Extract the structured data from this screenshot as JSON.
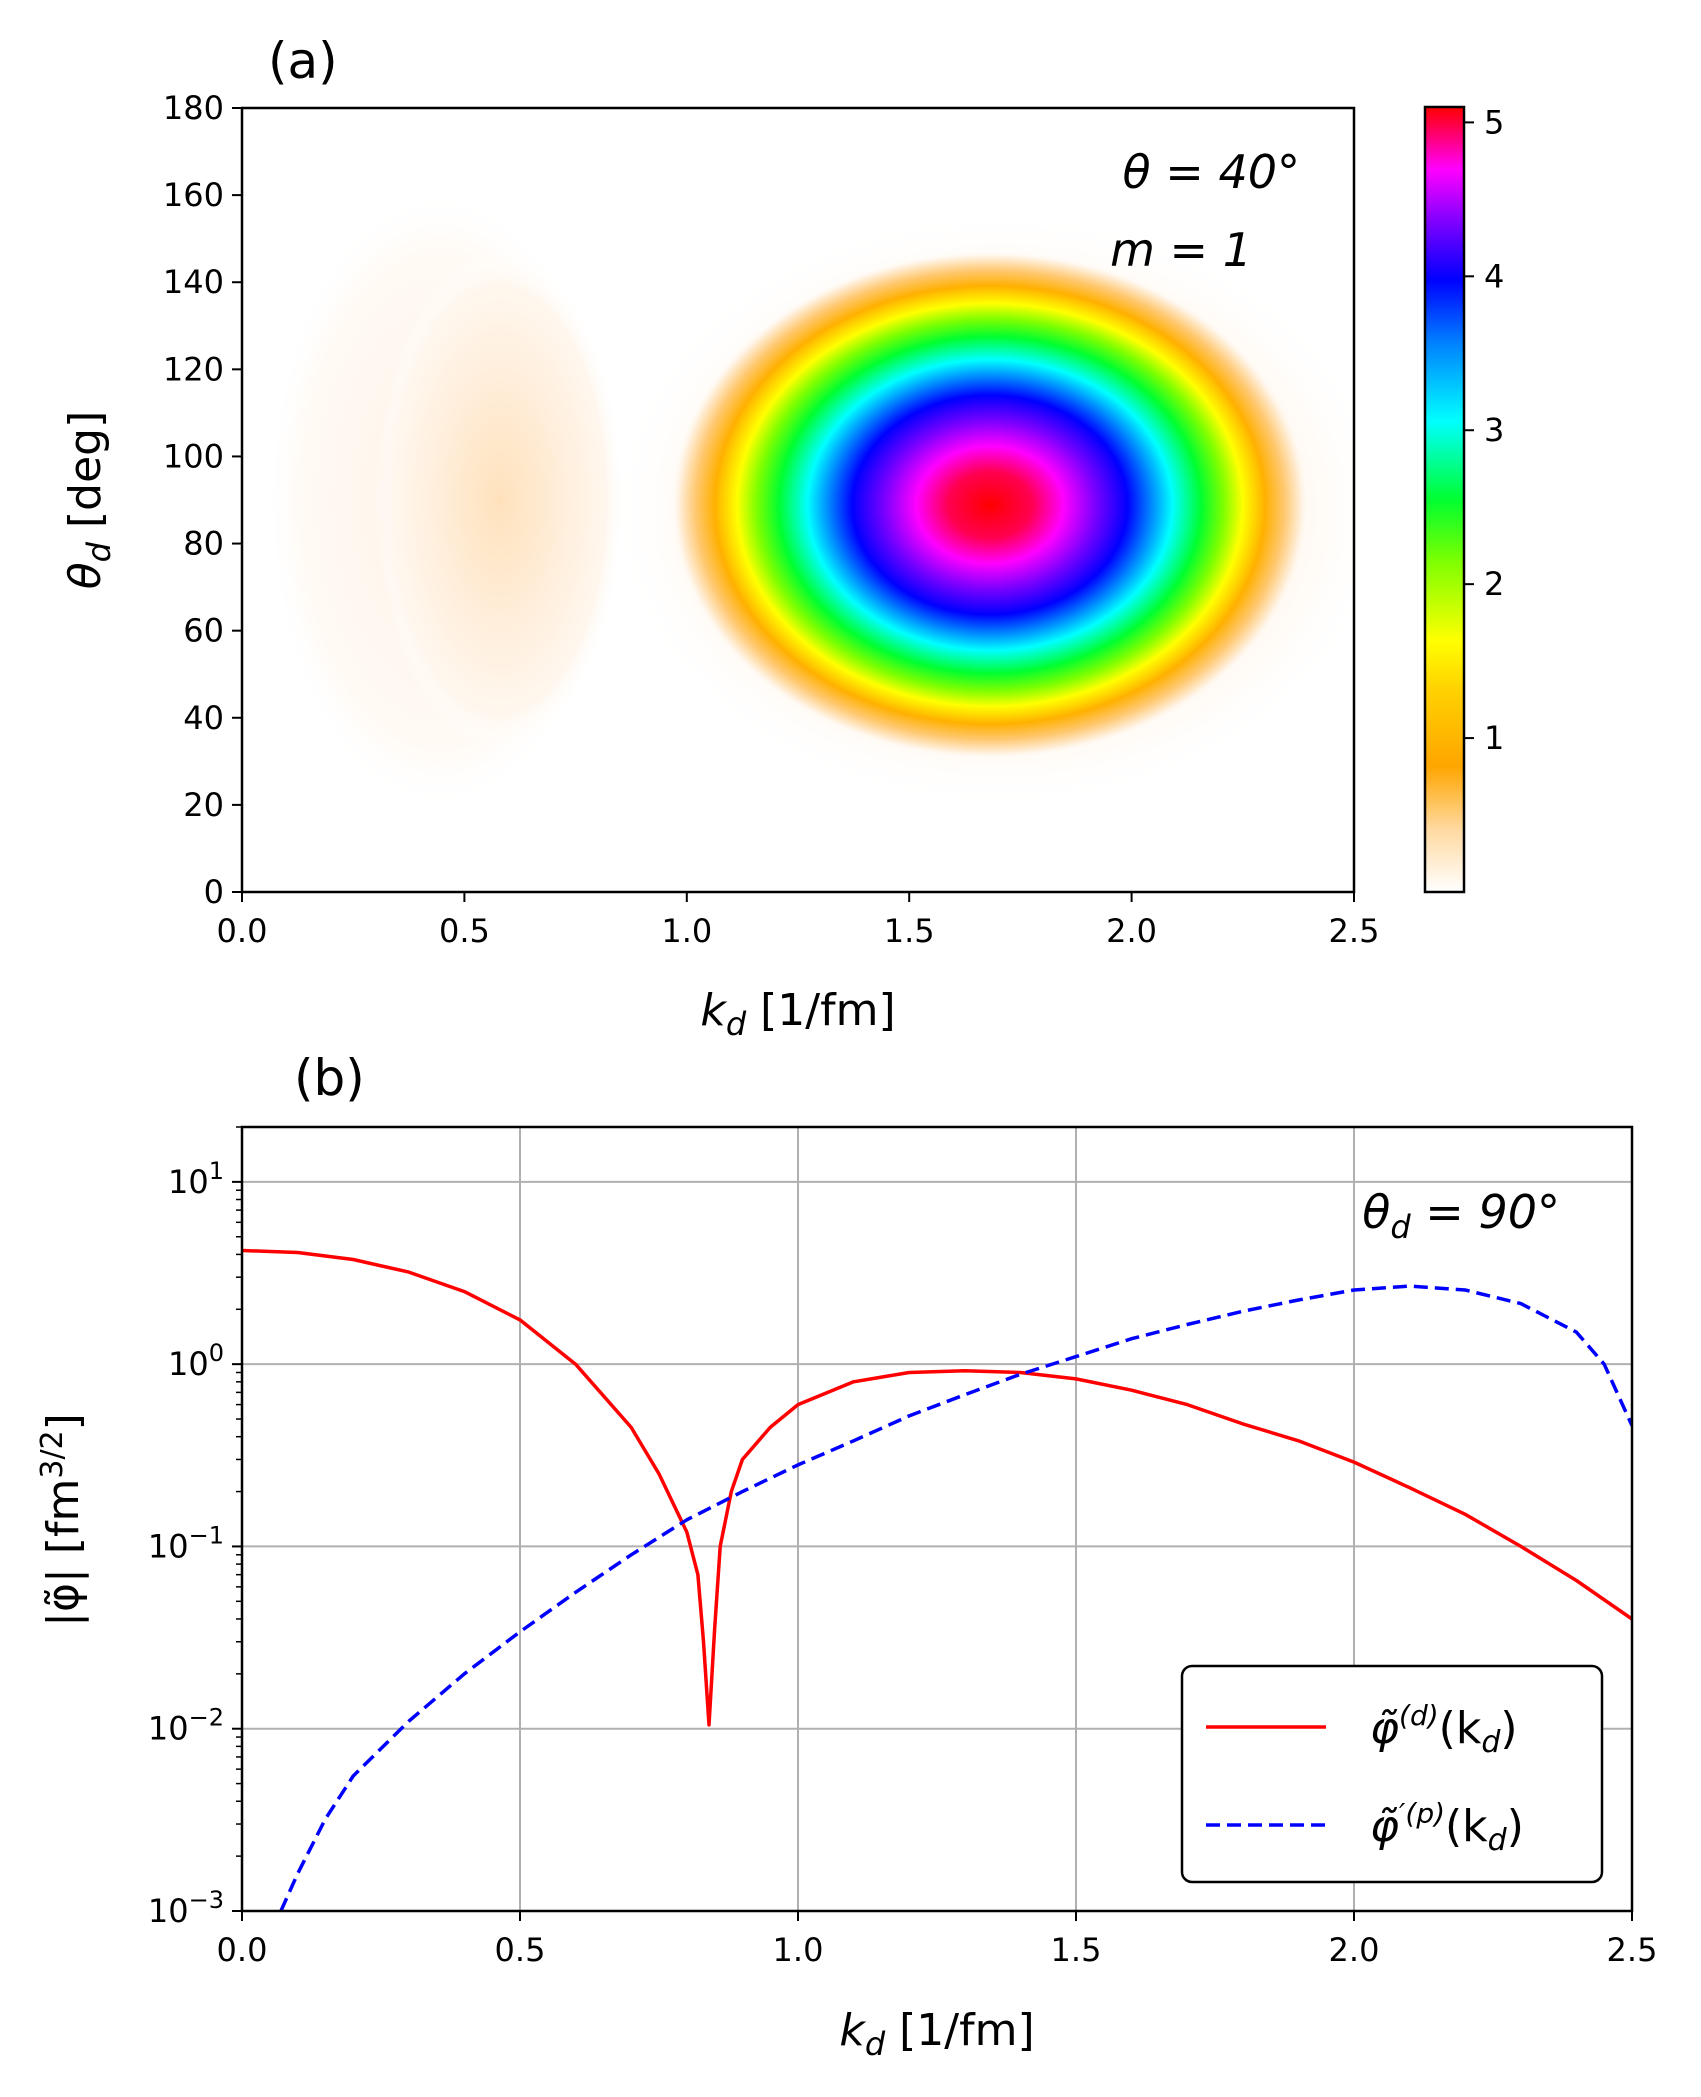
{
  "chart_data": [
    {
      "panel": "(a)",
      "type": "heatmap",
      "xlabel": "k_d [1/fm]",
      "xlabel_main": "k",
      "xlabel_sub": "d",
      "xlabel_rest": " [1/fm]",
      "ylabel_main": "θ",
      "ylabel_sub": "d",
      "ylabel_rest": " [deg]",
      "xlim": [
        0.0,
        2.5
      ],
      "ylim": [
        0,
        180
      ],
      "xticks": [
        "0.0",
        "0.5",
        "1.0",
        "1.5",
        "2.0",
        "2.5"
      ],
      "yticks": [
        "0",
        "20",
        "40",
        "60",
        "80",
        "100",
        "120",
        "140",
        "160",
        "180"
      ],
      "colorbar": {
        "ticks": [
          "1",
          "2",
          "3",
          "4",
          "5"
        ],
        "range": [
          0,
          5.1
        ],
        "colormap": "gist_ncar_r-like (white-orange-yellow-green-cyan-blue-magenta-red)"
      },
      "annotations": [
        "θ = 40°",
        "m = 1"
      ],
      "features": [
        {
          "label": "weak lobe",
          "center_k": 0.58,
          "center_theta": 90,
          "peak_value": 0.15
        },
        {
          "label": "main peak",
          "center_k": 1.7,
          "center_theta": 88,
          "peak_value": 5.1
        },
        {
          "label": "node",
          "k": 0.86
        }
      ]
    },
    {
      "panel": "(b)",
      "type": "line",
      "yscale": "log",
      "xlim": [
        0.0,
        2.5
      ],
      "ylim": [
        0.001,
        20
      ],
      "xticks": [
        "0.0",
        "0.5",
        "1.0",
        "1.5",
        "2.0",
        "2.5"
      ],
      "yticks": [
        {
          "base": "10",
          "exp": "1",
          "value": 10
        },
        {
          "base": "10",
          "exp": "0",
          "value": 1
        },
        {
          "base": "10",
          "exp": "−1",
          "value": 0.1
        },
        {
          "base": "10",
          "exp": "−2",
          "value": 0.01
        },
        {
          "base": "10",
          "exp": "−3",
          "value": 0.001
        }
      ],
      "xlabel_main": "k",
      "xlabel_sub": "d",
      "xlabel_rest": " [1/fm]",
      "ylabel": "|φ̃| [fm3/2]",
      "ylabel_main": "|φ̃| [fm",
      "ylabel_sup": "3/2",
      "ylabel_end": "]",
      "annotation": "θd = 90°",
      "annotation_main": "θ",
      "annotation_sub": "d",
      "annotation_rest": " = 90°",
      "grid": true,
      "legend_position": "lower-right",
      "series": [
        {
          "name": "φ̃(d)(kd)",
          "legend_main": "φ̃",
          "legend_sup": "(d)",
          "legend_arg": "(k",
          "legend_arg_sub": "d",
          "legend_close": ")",
          "color": "#ff0000",
          "style": "solid",
          "x": [
            0.0,
            0.1,
            0.2,
            0.3,
            0.4,
            0.5,
            0.6,
            0.7,
            0.75,
            0.8,
            0.82,
            0.83,
            0.84,
            0.85,
            0.86,
            0.88,
            0.9,
            0.95,
            1.0,
            1.1,
            1.2,
            1.3,
            1.4,
            1.5,
            1.6,
            1.7,
            1.8,
            1.9,
            2.0,
            2.1,
            2.2,
            2.3,
            2.4,
            2.5
          ],
          "y": [
            4.2,
            4.1,
            3.75,
            3.2,
            2.5,
            1.75,
            1.0,
            0.45,
            0.25,
            0.12,
            0.07,
            0.03,
            0.0105,
            0.035,
            0.1,
            0.2,
            0.3,
            0.45,
            0.6,
            0.8,
            0.9,
            0.92,
            0.9,
            0.83,
            0.72,
            0.6,
            0.47,
            0.38,
            0.29,
            0.21,
            0.15,
            0.1,
            0.065,
            0.04
          ]
        },
        {
          "name": "φ̃′(p)(kd)",
          "legend_main": "φ̃",
          "legend_sup": "′(p)",
          "legend_arg": "(k",
          "legend_arg_sub": "d",
          "legend_close": ")",
          "color": "#0000ff",
          "style": "dashed",
          "x": [
            0.07,
            0.1,
            0.15,
            0.2,
            0.3,
            0.4,
            0.5,
            0.6,
            0.7,
            0.8,
            0.9,
            1.0,
            1.1,
            1.2,
            1.3,
            1.4,
            1.5,
            1.6,
            1.7,
            1.8,
            1.9,
            2.0,
            2.1,
            2.2,
            2.3,
            2.4,
            2.45,
            2.5
          ],
          "y": [
            0.001,
            0.0016,
            0.0032,
            0.0055,
            0.011,
            0.02,
            0.034,
            0.056,
            0.09,
            0.14,
            0.2,
            0.28,
            0.38,
            0.52,
            0.68,
            0.88,
            1.1,
            1.38,
            1.65,
            1.95,
            2.25,
            2.55,
            2.68,
            2.55,
            2.15,
            1.5,
            1.0,
            0.46
          ]
        }
      ]
    }
  ]
}
